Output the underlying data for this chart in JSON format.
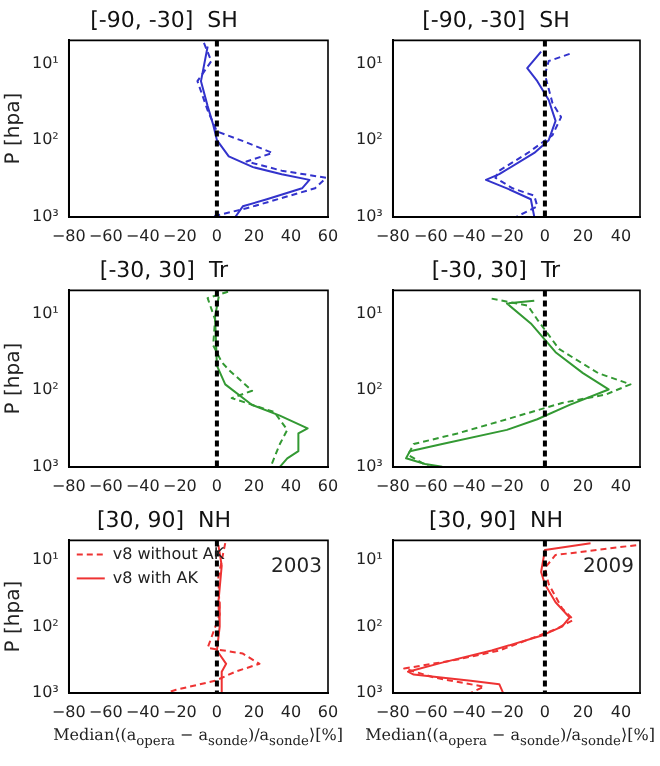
{
  "chart_data": [
    {
      "type": "line",
      "title": "[-90, -30]  SH",
      "ylabel": "P [hpa]",
      "log": "y",
      "marker": "none",
      "xlim": [
        -80,
        60
      ],
      "xticks": [
        {
          "value": -80,
          "label": "−80"
        },
        {
          "value": -60,
          "label": "−60"
        },
        {
          "value": -40,
          "label": "−40"
        },
        {
          "value": -20,
          "label": "−20"
        },
        0,
        20,
        40,
        60
      ],
      "ylim": [
        1000,
        5
      ],
      "yticks": [
        {
          "value": 1000,
          "label": "10³"
        },
        {
          "value": 100,
          "label": "10²"
        },
        {
          "value": 10,
          "label": "10¹"
        }
      ],
      "ref_lines": [
        {
          "axis": "x",
          "value": 0,
          "color": "#000000",
          "line_style": "dashed"
        }
      ],
      "series": [
        {
          "color": "#3333cc",
          "line_style": "dashed",
          "x": [
            -7,
            -3,
            -10.5,
            -5,
            0,
            16,
            30,
            16,
            35,
            59,
            53,
            16,
            -3
          ],
          "values": [
            5.4,
            9.3,
            17,
            41,
            77,
            107,
            147,
            190,
            250,
            310,
            425,
            775,
            1000
          ]
        },
        {
          "color": "#3333cc",
          "line_style": "solid",
          "x": [
            -5,
            -8.6,
            -5,
            -2,
            0,
            6.4,
            19.5,
            35,
            50,
            46,
            27,
            14,
            10
          ],
          "values": [
            6,
            17,
            36,
            63,
            100,
            163,
            225,
            278,
            330,
            425,
            590,
            730,
            1000
          ]
        }
      ]
    },
    {
      "type": "line",
      "title": "[-90, -30]  SH",
      "log": "y",
      "marker": "none",
      "xlim": [
        -80,
        50
      ],
      "xticks": [
        {
          "value": -80,
          "label": "−80"
        },
        {
          "value": -60,
          "label": "−60"
        },
        {
          "value": -40,
          "label": "−40"
        },
        {
          "value": -20,
          "label": "−20"
        },
        0,
        20,
        40
      ],
      "ylim": [
        1000,
        5
      ],
      "yticks": [
        {
          "value": 1000,
          "label": "10³"
        },
        {
          "value": 100,
          "label": "10²"
        },
        {
          "value": 10,
          "label": "10¹"
        }
      ],
      "ref_lines": [
        {
          "axis": "x",
          "value": 0,
          "color": "#000000",
          "line_style": "dashed"
        }
      ],
      "series": [
        {
          "color": "#3333cc",
          "line_style": "dashed",
          "x": [
            13,
            2,
            0,
            4,
            8.5,
            4,
            -9,
            -24,
            -26,
            -17,
            -5.6,
            -4,
            -15
          ],
          "values": [
            7.5,
            9.3,
            14,
            33,
            50,
            86,
            147,
            250,
            310,
            425,
            530,
            730,
            1000
          ]
        },
        {
          "color": "#3333cc",
          "line_style": "solid",
          "x": [
            -2,
            -9.3,
            -4,
            2,
            5.6,
            2,
            -5.6,
            -24,
            -31,
            -20,
            -7.4,
            -5.6
          ],
          "values": [
            7,
            11.5,
            17,
            30,
            56,
            100,
            147,
            278,
            330,
            425,
            590,
            1000
          ]
        }
      ]
    },
    {
      "type": "line",
      "title": "[-30, 30]  Tr",
      "ylabel": "P [hpa]",
      "log": "y",
      "marker": "none",
      "xlim": [
        -80,
        60
      ],
      "xticks": [
        {
          "value": -80,
          "label": "−80"
        },
        {
          "value": -60,
          "label": "−60"
        },
        {
          "value": -40,
          "label": "−40"
        },
        {
          "value": -20,
          "label": "−20"
        },
        0,
        20,
        40,
        60
      ],
      "ylim": [
        1000,
        5
      ],
      "yticks": [
        {
          "value": 1000,
          "label": "10³"
        },
        {
          "value": 100,
          "label": "10²"
        },
        {
          "value": 10,
          "label": "10¹"
        }
      ],
      "ref_lines": [
        {
          "axis": "x",
          "value": 0,
          "color": "#000000",
          "line_style": "dashed"
        }
      ],
      "series": [
        {
          "color": "#339933",
          "line_style": "dashed",
          "x": [
            6,
            -5,
            -1,
            -2,
            2.6,
            6.3,
            19,
            8,
            31,
            38,
            34,
            29
          ],
          "values": [
            5.2,
            6.3,
            12,
            26,
            43,
            54,
            102,
            127,
            193,
            330,
            505,
            1000
          ]
        },
        {
          "color": "#339933",
          "line_style": "solid",
          "x": [
            1,
            -1,
            0,
            4.5,
            19,
            34,
            49,
            44,
            44,
            38,
            34
          ],
          "values": [
            6,
            11,
            48,
            84,
            156,
            215,
            316,
            367,
            625,
            775,
            1000
          ]
        }
      ]
    },
    {
      "type": "line",
      "title": "[-30, 30]  Tr",
      "log": "y",
      "marker": "none",
      "xlim": [
        -80,
        50
      ],
      "xticks": [
        {
          "value": -80,
          "label": "−80"
        },
        {
          "value": -60,
          "label": "−60"
        },
        {
          "value": -40,
          "label": "−40"
        },
        {
          "value": -20,
          "label": "−20"
        },
        0,
        20,
        40
      ],
      "ylim": [
        1000,
        5
      ],
      "yticks": [
        {
          "value": 1000,
          "label": "10³"
        },
        {
          "value": 100,
          "label": "10²"
        },
        {
          "value": 10,
          "label": "10¹"
        }
      ],
      "ref_lines": [
        {
          "axis": "x",
          "value": 0,
          "color": "#000000",
          "line_style": "dashed"
        }
      ],
      "series": [
        {
          "color": "#339933",
          "line_style": "dashed",
          "x": [
            -28,
            -9,
            -4,
            7.4,
            28,
            45,
            32,
            9,
            -20,
            -46,
            -69,
            -72,
            -61
          ],
          "values": [
            6.4,
            7.9,
            12,
            29,
            60,
            84,
            114,
            147,
            240,
            367,
            505,
            700,
            1000
          ]
        },
        {
          "color": "#339933",
          "line_style": "solid",
          "x": [
            -5.6,
            -20,
            -7.4,
            5.6,
            20,
            33.5,
            13,
            -4,
            -20,
            -54,
            -71,
            -73,
            -63,
            -54
          ],
          "values": [
            6.8,
            7.4,
            13.5,
            32,
            60,
            98,
            156,
            240,
            330,
            505,
            625,
            775,
            920,
            1000
          ]
        }
      ]
    },
    {
      "type": "line",
      "title": "[30, 90]  NH",
      "ylabel": "P [hpa]",
      "xlabel": "Median⟨(a$_{opera}$ − a$_{sonde}$)/a$_{sonde}$⟩[%]",
      "log": "y",
      "marker": "none",
      "legend": "top left",
      "annotations": [
        "2003"
      ],
      "xlim": [
        -80,
        60
      ],
      "xticks": [
        {
          "value": -80,
          "label": "−80"
        },
        {
          "value": -60,
          "label": "−60"
        },
        {
          "value": -40,
          "label": "−40"
        },
        {
          "value": -20,
          "label": "−20"
        },
        0,
        20,
        40,
        60
      ],
      "ylim": [
        1000,
        5
      ],
      "yticks": [
        {
          "value": 1000,
          "label": "10³"
        },
        {
          "value": 100,
          "label": "10²"
        },
        {
          "value": 10,
          "label": "10¹"
        }
      ],
      "ref_lines": [
        {
          "axis": "x",
          "value": 0,
          "color": "#000000",
          "line_style": "dashed"
        }
      ],
      "series": [
        {
          "name": "v8 without AK",
          "color": "#ee3333",
          "line_style": "dashed",
          "x": [
            4.5,
            0.8,
            1.5,
            -5,
            14,
            23,
            10,
            -1,
            -22,
            -27
          ],
          "values": [
            5.5,
            18,
            66,
            210,
            256,
            365,
            480,
            660,
            900,
            1000
          ]
        },
        {
          "name": "v8 with AK",
          "color": "#ee3333",
          "line_style": "solid",
          "x": [
            0.8,
            2.6,
            0.8,
            1.5,
            0,
            5,
            2.6,
            2.6
          ],
          "values": [
            5.9,
            12,
            43,
            100,
            230,
            365,
            480,
            1000
          ]
        }
      ]
    },
    {
      "type": "line",
      "title": "[30, 90]  NH",
      "xlabel": "Median⟨(a$_{opera}$ − a$_{sonde}$)/a$_{sonde}$⟩[%]",
      "log": "y",
      "marker": "none",
      "annotations": [
        "2009"
      ],
      "xlim": [
        -80,
        50
      ],
      "xticks": [
        {
          "value": -80,
          "label": "−80"
        },
        {
          "value": -60,
          "label": "−60"
        },
        {
          "value": -40,
          "label": "−40"
        },
        {
          "value": -20,
          "label": "−20"
        },
        0,
        20,
        40
      ],
      "ylim": [
        1000,
        5
      ],
      "yticks": [
        {
          "value": 1000,
          "label": "10³"
        },
        {
          "value": 100,
          "label": "10²"
        },
        {
          "value": 10,
          "label": "10¹"
        }
      ],
      "ref_lines": [
        {
          "axis": "x",
          "value": 0,
          "color": "#000000",
          "line_style": "dashed"
        }
      ],
      "series": [
        {
          "color": "#ee3333",
          "line_style": "dashed",
          "x": [
            48,
            5.6,
            0,
            2,
            9,
            15,
            5.6,
            -24,
            -46,
            -74,
            -58,
            -32,
            -39
          ],
          "values": [
            5.9,
            8.3,
            13,
            23,
            53,
            79,
            110,
            230,
            315,
            430,
            590,
            810,
            1000
          ]
        },
        {
          "color": "#ee3333",
          "line_style": "solid",
          "x": [
            24,
            0,
            -2,
            0,
            5.6,
            13,
            9,
            -2,
            -28,
            -54,
            -72,
            -69,
            -39,
            -24,
            -22
          ],
          "values": [
            5.5,
            7,
            15,
            23,
            43,
            73,
            100,
            138,
            230,
            350,
            480,
            530,
            660,
            740,
            1000
          ]
        }
      ]
    }
  ]
}
